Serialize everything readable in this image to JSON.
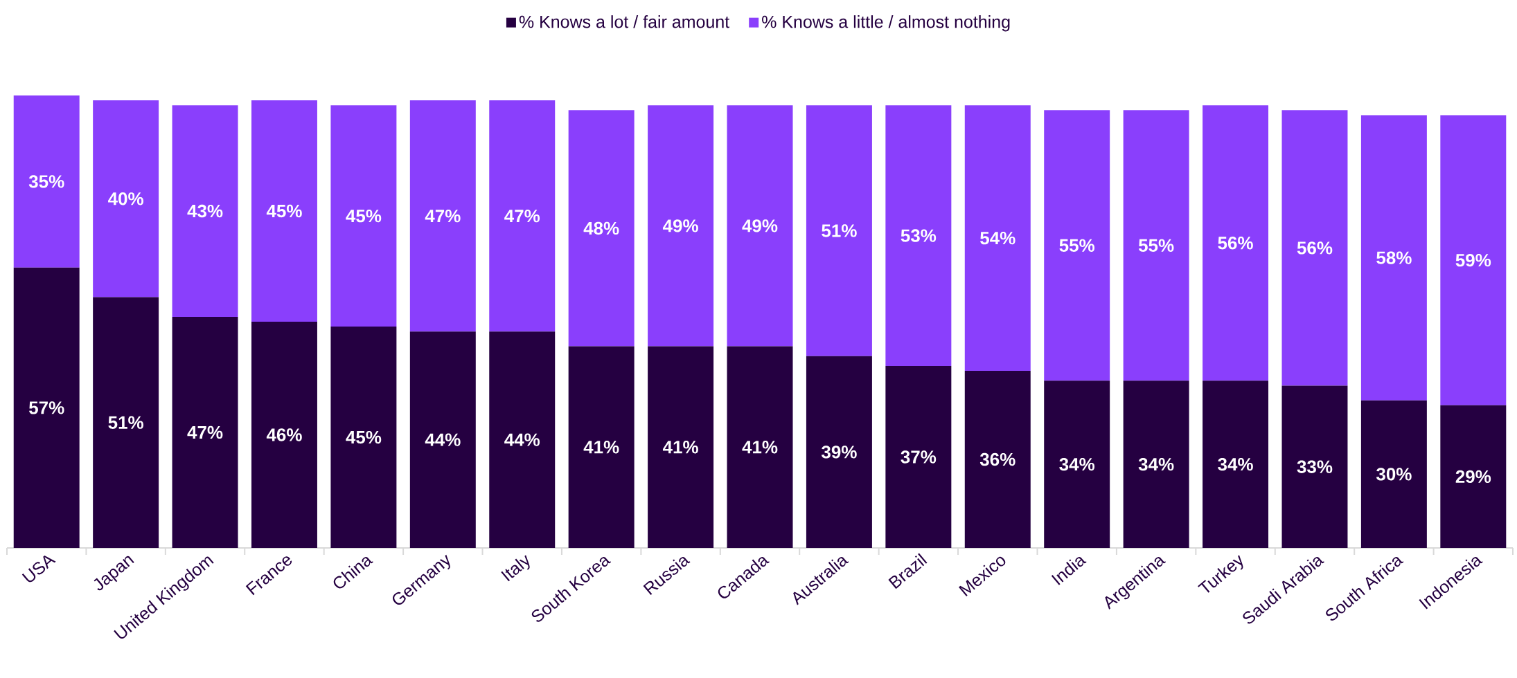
{
  "chart_data": {
    "type": "bar",
    "stacked": true,
    "legend": "top",
    "data_labels": true,
    "categories": [
      "USA",
      "Japan",
      "United Kingdom",
      "France",
      "China",
      "Germany",
      "Italy",
      "South Korea",
      "Russia",
      "Canada",
      "Australia",
      "Brazil",
      "Mexico",
      "India",
      "Argentina",
      "Turkey",
      "Saudi Arabia",
      "South Africa",
      "Indonesia"
    ],
    "series": [
      {
        "name": "% Knows a lot / fair amount",
        "color": "#250041",
        "values": [
          57,
          51,
          47,
          46,
          45,
          44,
          44,
          41,
          41,
          41,
          39,
          37,
          36,
          34,
          34,
          34,
          33,
          30,
          29
        ],
        "value_labels": [
          "57%",
          "51%",
          "47%",
          "46%",
          "45%",
          "44%",
          "44%",
          "41%",
          "41%",
          "41%",
          "39%",
          "37%",
          "36%",
          "34%",
          "34%",
          "34%",
          "33%",
          "30%",
          "29%"
        ]
      },
      {
        "name": "% Knows a little / almost nothing",
        "color": "#8a3ffc",
        "values": [
          35,
          40,
          43,
          45,
          45,
          47,
          47,
          48,
          49,
          49,
          51,
          53,
          54,
          55,
          55,
          56,
          56,
          58,
          59
        ],
        "value_labels": [
          "35%",
          "40%",
          "43%",
          "45%",
          "45%",
          "47%",
          "47%",
          "48%",
          "49%",
          "49%",
          "51%",
          "53%",
          "54%",
          "55%",
          "55%",
          "56%",
          "56%",
          "58%",
          "59%"
        ]
      }
    ]
  }
}
